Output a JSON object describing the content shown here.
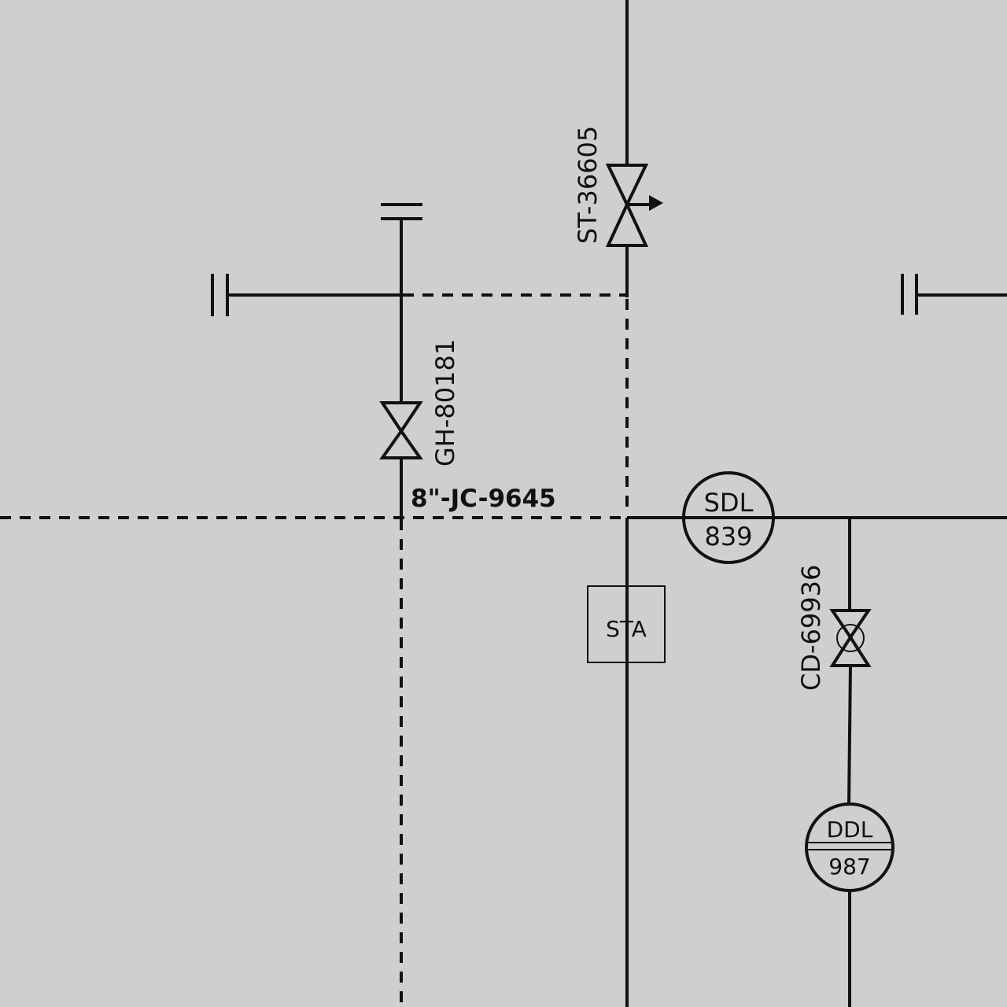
{
  "diagram": {
    "valves": {
      "st": {
        "tag": "ST-36605"
      },
      "gh": {
        "tag": "GH-80181"
      },
      "cd": {
        "tag": "CD-69936"
      }
    },
    "line_number": "8\"-JC-9645",
    "instruments": {
      "sdl": {
        "code": "SDL",
        "number": "839"
      },
      "ddl": {
        "code": "DDL",
        "number": "987"
      }
    },
    "box": {
      "label": "STA"
    }
  }
}
